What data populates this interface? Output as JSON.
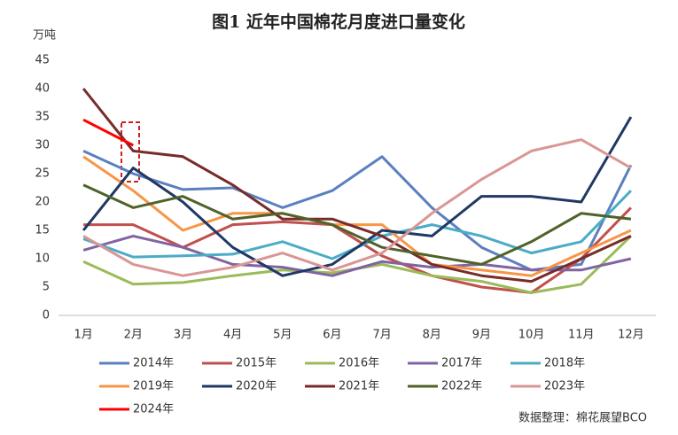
{
  "chart_data": {
    "type": "line",
    "title": "图1  近年中国棉花月度进口量变化",
    "y_label": "万吨",
    "source": "数据整理：棉花展望BCO",
    "categories": [
      "1月",
      "2月",
      "3月",
      "4月",
      "5月",
      "6月",
      "7月",
      "8月",
      "9月",
      "10月",
      "11月",
      "12月"
    ],
    "ylim": [
      0,
      45
    ],
    "yticks": [
      0,
      5,
      10,
      15,
      20,
      25,
      30,
      35,
      40,
      45
    ],
    "series": [
      {
        "name": "2014年",
        "color": "#5b80bf",
        "values": [
          29,
          25,
          22.2,
          22.5,
          19,
          22,
          28,
          19,
          12,
          8,
          9,
          26.5
        ]
      },
      {
        "name": "2015年",
        "color": "#c0504d",
        "values": [
          16,
          16,
          12,
          16,
          16.5,
          16,
          10.5,
          7,
          5,
          4,
          10,
          19
        ]
      },
      {
        "name": "2016年",
        "color": "#9bbb59",
        "values": [
          9.5,
          5.5,
          5.8,
          7,
          8,
          7.5,
          9,
          7,
          6,
          4,
          5.5,
          14
        ]
      },
      {
        "name": "2017年",
        "color": "#8064a2",
        "values": [
          11.5,
          14,
          12,
          9,
          8.5,
          7,
          9.5,
          8.5,
          9,
          8,
          8,
          10
        ]
      },
      {
        "name": "2018年",
        "color": "#4bacc6",
        "values": [
          13.5,
          10.3,
          10.5,
          10.8,
          13,
          10,
          14,
          16,
          14,
          11,
          13,
          22
        ]
      },
      {
        "name": "2019年",
        "color": "#f79646",
        "values": [
          28,
          22,
          15,
          18,
          18,
          16,
          16,
          9,
          8,
          7,
          11,
          15
        ]
      },
      {
        "name": "2020年",
        "color": "#1f3864",
        "values": [
          15,
          26,
          20,
          12,
          7,
          9,
          15,
          14,
          21,
          21,
          20,
          35
        ]
      },
      {
        "name": "2021年",
        "color": "#772c2a",
        "values": [
          40,
          29,
          28,
          23,
          17,
          17,
          14,
          9,
          7,
          6,
          10,
          14
        ]
      },
      {
        "name": "2022年",
        "color": "#4f6228",
        "values": [
          23,
          19,
          21,
          17,
          18,
          16,
          12,
          10.5,
          9,
          13,
          18,
          17
        ]
      },
      {
        "name": "2023年",
        "color": "#d99694",
        "values": [
          14,
          9,
          7,
          8.5,
          11,
          8,
          11,
          18,
          24,
          29,
          31,
          26
        ]
      },
      {
        "name": "2024年",
        "color": "#ff0000",
        "values": [
          34.5,
          30,
          null,
          null,
          null,
          null,
          null,
          null,
          null,
          null,
          null,
          null
        ]
      }
    ]
  }
}
